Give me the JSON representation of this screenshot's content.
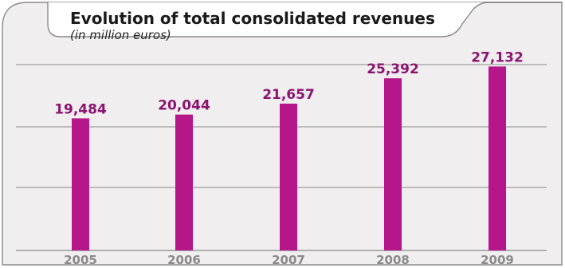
{
  "chart_data": {
    "type": "bar",
    "title": "Evolution of total consolidated revenues",
    "subtitle": "(in million euros)",
    "categories": [
      "2005",
      "2006",
      "2007",
      "2008",
      "2009"
    ],
    "values": [
      19484,
      20044,
      21657,
      25392,
      27132
    ],
    "value_labels": [
      "19,484",
      "20,044",
      "21,657",
      "25,392",
      "27,132"
    ],
    "xlabel": "",
    "ylabel": "",
    "grid": true,
    "colors": {
      "bar": "#b5178a",
      "value_label": "#8c1470",
      "tick_label": "#8a8a8a",
      "panel_fill": "#f0eeee",
      "panel_border": "#8a8a8a",
      "gridline": "#8a8a8a",
      "baseline": "#8a8a8a"
    }
  }
}
